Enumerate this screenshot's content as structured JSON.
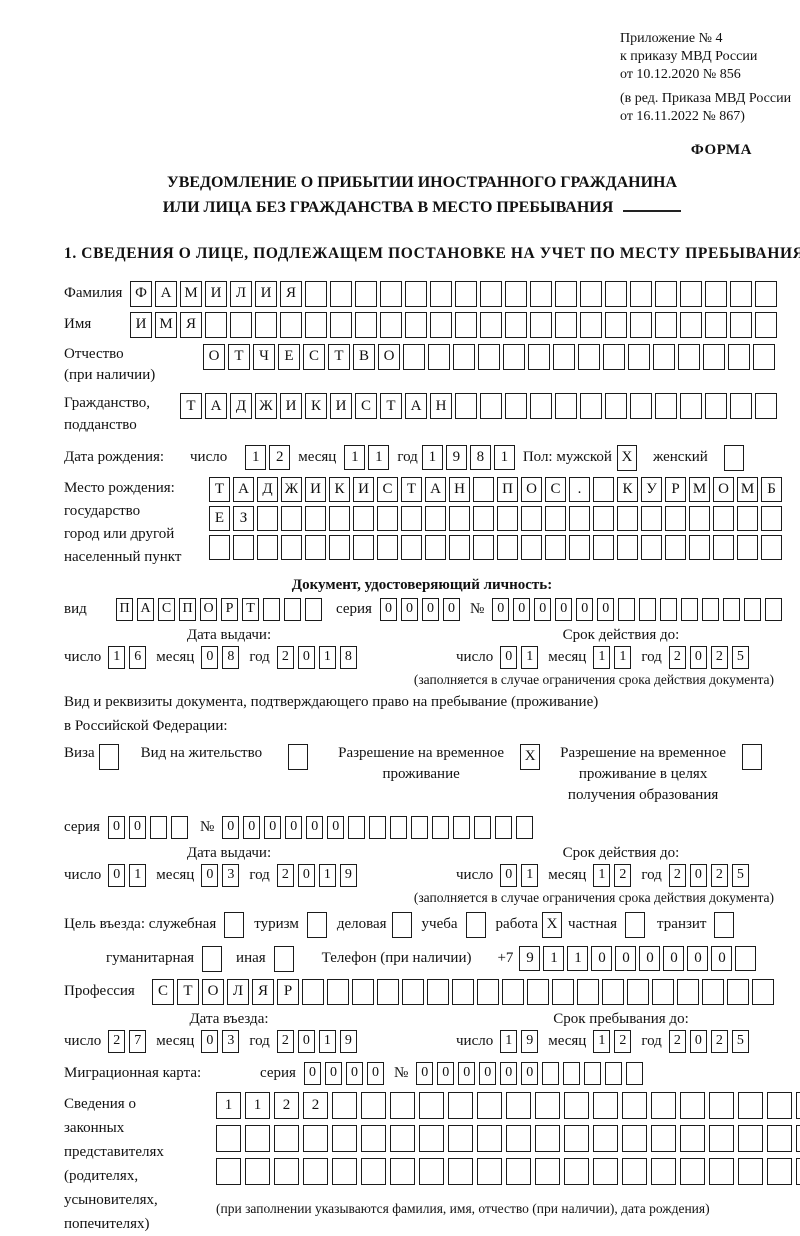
{
  "header": {
    "appendix": [
      "Приложение № 4",
      "к приказу МВД России",
      "от 10.12.2020 № 856"
    ],
    "revision": [
      "(в ред. Приказа МВД России",
      "от 16.11.2022 № 867)"
    ],
    "form_label": "ФОРМА"
  },
  "title": {
    "line1": "УВЕДОМЛЕНИЕ О ПРИБЫТИИ ИНОСТРАННОГО ГРАЖДАНИНА",
    "line2": "ИЛИ ЛИЦА БЕЗ ГРАЖДАНСТВА В МЕСТО ПРЕБЫВАНИЯ"
  },
  "section1_heading": "1. СВЕДЕНИЯ О ЛИЦЕ, ПОДЛЕЖАЩЕМ ПОСТАНОВКЕ НА УЧЕТ ПО МЕСТУ ПРЕБЫВАНИЯ",
  "labels": {
    "surname": "Фамилия",
    "name": "Имя",
    "patronymic": "Отчество",
    "patronymic_note": "(при наличии)",
    "citizenship1": "Гражданство,",
    "citizenship2": "подданство",
    "birth_date": "Дата рождения:",
    "day": "число",
    "month": "месяц",
    "year": "год",
    "sex": "Пол: мужской",
    "female": "женский",
    "birth_place1": "Место рождения:",
    "birth_place2": "государство",
    "birth_place3": "город или другой",
    "birth_place4": "населенный пункт",
    "identity_doc_heading": "Документ, удостоверяющий личность:",
    "doc_type": "вид",
    "series": "серия",
    "number": "№",
    "issue_date": "Дата выдачи:",
    "valid_until": "Срок действия до:",
    "valid_note": "(заполняется в случае ограничения срока действия документа)",
    "residence_doc_line1": "Вид и реквизиты документа, подтверждающего право на пребывание (проживание)",
    "residence_doc_line2": "в Российской Федерации:",
    "visa": "Виза",
    "residence_permit": "Вид на жительство",
    "temp_permit_l1": "Разрешение на временное",
    "temp_permit_l2": "проживание",
    "edu_permit_l1": "Разрешение на временное",
    "edu_permit_l2": "проживание в целях",
    "edu_permit_l3": "получения образования",
    "purpose": "Цель въезда: служебная",
    "purpose_tourism": "туризм",
    "purpose_business": "деловая",
    "purpose_study": "учеба",
    "purpose_work": "работа",
    "purpose_private": "частная",
    "purpose_transit": "транзит",
    "purpose_humanitarian": "гуманитарная",
    "purpose_other": "иная",
    "phone": "Телефон (при наличии)",
    "phone_prefix": "+7",
    "profession": "Профессия",
    "entry_date": "Дата въезда:",
    "stay_until": "Срок пребывания до:",
    "migration_card": "Миграционная карта:",
    "representatives": [
      "Сведения о",
      "законных",
      "представителях",
      "(родителях,",
      "усыновителях,",
      "попечителях)"
    ],
    "representatives_note": "(при заполнении указываются фамилия, имя, отчество (при наличии), дата рождения)"
  },
  "boxes": {
    "surname": {
      "value": "ФАМИЛИЯ",
      "count": 26
    },
    "name": {
      "value": "ИМЯ",
      "count": 26
    },
    "patronymic": {
      "value": "ОТЧЕСТВО",
      "count": 23
    },
    "citizenship": {
      "value": "ТАДЖИКИСТАН",
      "count": 24
    },
    "birth_day": {
      "value": "12",
      "count": 2
    },
    "birth_month": {
      "value": "11",
      "count": 2
    },
    "birth_year": {
      "value": "1981",
      "count": 4
    },
    "sex_male": {
      "value": "X",
      "count": 1
    },
    "sex_female": {
      "value": "",
      "count": 1
    },
    "birth_place_row1": {
      "value": "ТАДЖИКИСТАН ПОС. КУРМОМБ",
      "count": 24
    },
    "birth_place_row2": {
      "value": "ЕЗ",
      "count": 24
    },
    "birth_place_row3": {
      "value": "",
      "count": 24
    },
    "doc_type": {
      "value": "ПАСПОРТ",
      "count": 10
    },
    "doc_series": {
      "value": "0000",
      "count": 4
    },
    "doc_number": {
      "value": "000000",
      "count": 14
    },
    "doc_issue_day": {
      "value": "16",
      "count": 2
    },
    "doc_issue_month": {
      "value": "08",
      "count": 2
    },
    "doc_issue_year": {
      "value": "2018",
      "count": 4
    },
    "doc_valid_day": {
      "value": "01",
      "count": 2
    },
    "doc_valid_month": {
      "value": "11",
      "count": 2
    },
    "doc_valid_year": {
      "value": "2025",
      "count": 4
    },
    "visa_cb": {
      "value": "",
      "count": 1
    },
    "residence_permit_cb": {
      "value": "",
      "count": 1
    },
    "temp_permit_cb": {
      "value": "X",
      "count": 1
    },
    "edu_permit_cb": {
      "value": "",
      "count": 1
    },
    "permit_series": {
      "value": "00",
      "count": 4
    },
    "permit_number": {
      "value": "000000",
      "count": 15
    },
    "permit_issue_day": {
      "value": "01",
      "count": 2
    },
    "permit_issue_month": {
      "value": "03",
      "count": 2
    },
    "permit_issue_year": {
      "value": "2019",
      "count": 4
    },
    "permit_valid_day": {
      "value": "01",
      "count": 2
    },
    "permit_valid_month": {
      "value": "12",
      "count": 2
    },
    "permit_valid_year": {
      "value": "2025",
      "count": 4
    },
    "purpose_official_cb": {
      "value": "",
      "count": 1
    },
    "purpose_tourism_cb": {
      "value": "",
      "count": 1
    },
    "purpose_business_cb": {
      "value": "",
      "count": 1
    },
    "purpose_study_cb": {
      "value": "",
      "count": 1
    },
    "purpose_work_cb": {
      "value": "X",
      "count": 1
    },
    "purpose_private_cb": {
      "value": "",
      "count": 1
    },
    "purpose_transit_cb": {
      "value": "",
      "count": 1
    },
    "purpose_humanitarian_cb": {
      "value": "",
      "count": 1
    },
    "purpose_other_cb": {
      "value": "",
      "count": 1
    },
    "phone_number": {
      "value": "911000000",
      "count": 10
    },
    "profession": {
      "value": "СТОЛЯР",
      "count": 25
    },
    "entry_day": {
      "value": "27",
      "count": 2
    },
    "entry_month": {
      "value": "03",
      "count": 2
    },
    "entry_year": {
      "value": "2019",
      "count": 4
    },
    "stay_day": {
      "value": "19",
      "count": 2
    },
    "stay_month": {
      "value": "12",
      "count": 2
    },
    "stay_year": {
      "value": "2025",
      "count": 4
    },
    "mig_series": {
      "value": "0000",
      "count": 4
    },
    "mig_number": {
      "value": "000000",
      "count": 11
    },
    "rep_row1": {
      "value": "1122",
      "count": 23
    },
    "rep_row2": {
      "value": "",
      "count": 23
    },
    "rep_row3": {
      "value": "",
      "count": 23
    }
  }
}
